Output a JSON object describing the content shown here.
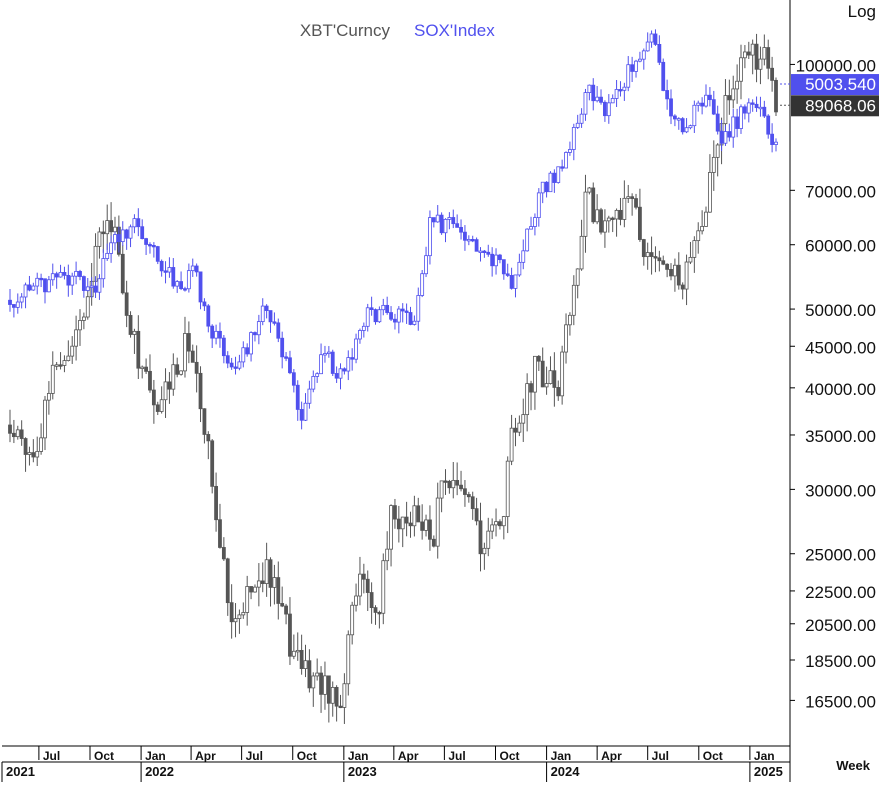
{
  "chart_data": {
    "type": "candlestick",
    "scale": "log",
    "scale_label": "Log",
    "period_label": "Week",
    "grid": false,
    "legend_position": "top-center",
    "ylim": [
      14500,
      118000
    ],
    "x_range": [
      "2021-05-10",
      "2025-02-17"
    ],
    "y_ticks": [
      {
        "value": 16500,
        "label": "16500.00"
      },
      {
        "value": 18500,
        "label": "18500.00"
      },
      {
        "value": 20500,
        "label": "20500.00"
      },
      {
        "value": 22500,
        "label": "22500.00"
      },
      {
        "value": 25000,
        "label": "25000.00"
      },
      {
        "value": 30000,
        "label": "30000.00"
      },
      {
        "value": 35000,
        "label": "35000.00"
      },
      {
        "value": 40000,
        "label": "40000.00"
      },
      {
        "value": 45000,
        "label": "45000.00"
      },
      {
        "value": 50000,
        "label": "50000.00"
      },
      {
        "value": 60000,
        "label": "60000.00"
      },
      {
        "value": 70000,
        "label": "70000.00"
      },
      {
        "value": 100000,
        "label": "100000.00"
      }
    ],
    "month_ticks": [
      {
        "date": "2021-07-01",
        "label": "Jul"
      },
      {
        "date": "2021-10-01",
        "label": "Oct"
      },
      {
        "date": "2022-01-01",
        "label": "Jan"
      },
      {
        "date": "2022-04-01",
        "label": "Apr"
      },
      {
        "date": "2022-07-01",
        "label": "Jul"
      },
      {
        "date": "2022-10-01",
        "label": "Oct"
      },
      {
        "date": "2023-01-01",
        "label": "Jan"
      },
      {
        "date": "2023-04-01",
        "label": "Apr"
      },
      {
        "date": "2023-07-01",
        "label": "Jul"
      },
      {
        "date": "2023-10-01",
        "label": "Oct"
      },
      {
        "date": "2024-01-01",
        "label": "Jan"
      },
      {
        "date": "2024-04-01",
        "label": "Apr"
      },
      {
        "date": "2024-07-01",
        "label": "Jul"
      },
      {
        "date": "2024-10-01",
        "label": "Oct"
      },
      {
        "date": "2025-01-01",
        "label": "Jan"
      }
    ],
    "year_ticks": [
      {
        "date": "2021-05-10",
        "label": "2021"
      },
      {
        "date": "2022-01-01",
        "label": "2022"
      },
      {
        "date": "2023-01-01",
        "label": "2023"
      },
      {
        "date": "2024-01-01",
        "label": "2024"
      },
      {
        "date": "2025-01-01",
        "label": "2025"
      }
    ],
    "series": [
      {
        "name": "XBT'Curncy",
        "color": "#555555",
        "last_value_label": "89068.06",
        "last_value": 89068.06,
        "anchors": [
          [
            "2021-05-10",
            36000
          ],
          [
            "2021-06-21",
            33000
          ],
          [
            "2021-08-02",
            44000
          ],
          [
            "2021-09-06",
            46000
          ],
          [
            "2021-10-18",
            62000
          ],
          [
            "2021-11-08",
            65000
          ],
          [
            "2021-12-13",
            48000
          ],
          [
            "2022-01-24",
            37000
          ],
          [
            "2022-03-28",
            46000
          ],
          [
            "2022-05-09",
            31000
          ],
          [
            "2022-06-13",
            21000
          ],
          [
            "2022-08-15",
            24000
          ],
          [
            "2022-09-26",
            19500
          ],
          [
            "2022-11-07",
            17500
          ],
          [
            "2022-12-26",
            16700
          ],
          [
            "2023-01-23",
            23000
          ],
          [
            "2023-03-06",
            21500
          ],
          [
            "2023-03-27",
            28000
          ],
          [
            "2023-05-08",
            27500
          ],
          [
            "2023-06-12",
            26000
          ],
          [
            "2023-06-26",
            30500
          ],
          [
            "2023-08-14",
            29000
          ],
          [
            "2023-09-04",
            25800
          ],
          [
            "2023-10-16",
            28000
          ],
          [
            "2023-10-30",
            35000
          ],
          [
            "2023-12-11",
            42000
          ],
          [
            "2024-01-22",
            40000
          ],
          [
            "2024-02-26",
            57000
          ],
          [
            "2024-03-11",
            69000
          ],
          [
            "2024-04-22",
            63000
          ],
          [
            "2024-06-03",
            68000
          ],
          [
            "2024-07-01",
            58000
          ],
          [
            "2024-08-05",
            56000
          ],
          [
            "2024-09-02",
            55000
          ],
          [
            "2024-10-14",
            67000
          ],
          [
            "2024-11-11",
            88000
          ],
          [
            "2024-12-16",
            100000
          ],
          [
            "2025-01-27",
            104000
          ],
          [
            "2025-02-17",
            89068
          ]
        ]
      },
      {
        "name": "SOX'Index",
        "color": "#5050ee",
        "last_value_label": "5003.540",
        "last_value": 5003.54,
        "anchors": [
          [
            "2021-05-10",
            3200
          ],
          [
            "2021-06-21",
            3310
          ],
          [
            "2021-07-26",
            3370
          ],
          [
            "2021-09-06",
            3450
          ],
          [
            "2021-10-04",
            3280
          ],
          [
            "2021-11-22",
            3880
          ],
          [
            "2021-12-27",
            3980
          ],
          [
            "2022-03-07",
            3300
          ],
          [
            "2022-04-04",
            3500
          ],
          [
            "2022-05-09",
            2950
          ],
          [
            "2022-06-20",
            2600
          ],
          [
            "2022-08-08",
            3150
          ],
          [
            "2022-09-12",
            2800
          ],
          [
            "2022-10-17",
            2250
          ],
          [
            "2022-11-21",
            2750
          ],
          [
            "2022-12-26",
            2600
          ],
          [
            "2023-02-13",
            3050
          ],
          [
            "2023-03-27",
            3100
          ],
          [
            "2023-05-08",
            3000
          ],
          [
            "2023-06-05",
            3950
          ],
          [
            "2023-07-17",
            4000
          ],
          [
            "2023-08-21",
            3700
          ],
          [
            "2023-10-02",
            3550
          ],
          [
            "2023-10-30",
            3400
          ],
          [
            "2023-12-18",
            4300
          ],
          [
            "2024-02-05",
            4800
          ],
          [
            "2024-03-18",
            5800
          ],
          [
            "2024-04-15",
            5500
          ],
          [
            "2024-05-27",
            6100
          ],
          [
            "2024-07-08",
            6800
          ],
          [
            "2024-08-05",
            5600
          ],
          [
            "2024-09-02",
            5100
          ],
          [
            "2024-10-14",
            5800
          ],
          [
            "2024-11-11",
            5100
          ],
          [
            "2024-12-16",
            5400
          ],
          [
            "2025-01-13",
            5550
          ],
          [
            "2025-02-17",
            5003.54
          ]
        ]
      }
    ]
  }
}
